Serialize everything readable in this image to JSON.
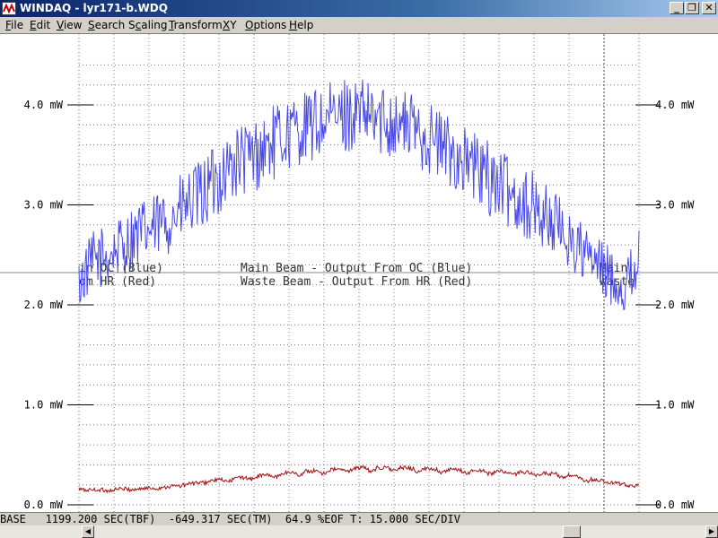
{
  "window": {
    "title": "WINDAQ - lyr171-b.WDQ",
    "buttons": {
      "minimize": "_",
      "maximize": "❐",
      "close": "✕"
    }
  },
  "menu": {
    "items": [
      {
        "label": "File",
        "underline": "F",
        "rest": "ile"
      },
      {
        "label": "Edit",
        "underline": "E",
        "rest": "dit"
      },
      {
        "label": "View",
        "underline": "V",
        "rest": "iew"
      },
      {
        "label": "Search",
        "underline": "S",
        "rest": "earch"
      },
      {
        "label": "Scaling",
        "underline": "c",
        "pre": "S",
        "rest": "aling"
      },
      {
        "label": "Transform",
        "underline": "T",
        "rest": "ransform"
      },
      {
        "label": "XY",
        "underline": "X",
        "rest": "Y"
      },
      {
        "label": "Options",
        "underline": "O",
        "rest": "ptions"
      },
      {
        "label": "Help",
        "underline": "H",
        "rest": "elp"
      }
    ]
  },
  "chart_data": {
    "type": "line",
    "y_unit": "mW",
    "ylim": [
      0,
      4.6
    ],
    "y_ticks": [
      {
        "value": 0.0,
        "label": "0.0 mW"
      },
      {
        "value": 1.0,
        "label": "1.0 mW"
      },
      {
        "value": 2.0,
        "label": "2.0 mW"
      },
      {
        "value": 3.0,
        "label": "3.0 mW"
      },
      {
        "value": 4.0,
        "label": "4.0 mW"
      }
    ],
    "grid": true,
    "x_divisions": 16,
    "sec_per_div": 15.0,
    "series": [
      {
        "name": "Main Beam - Output From OC (Blue)",
        "color": "#4a4ae8",
        "values": [
          2.2,
          2.45,
          2.5,
          2.6,
          2.7,
          2.75,
          2.85,
          2.95,
          3.05,
          3.2,
          3.35,
          3.45,
          3.5,
          3.6,
          3.7,
          3.75,
          3.8,
          3.85,
          3.9,
          3.9,
          3.85,
          3.85,
          3.8,
          3.75,
          3.65,
          3.55,
          3.45,
          3.35,
          3.25,
          3.15,
          3.05,
          2.95,
          2.85,
          2.7,
          2.55,
          2.4,
          2.3,
          2.15,
          2.5
        ]
      },
      {
        "name": "Waste Beam - Output From HR (Red)",
        "color": "#a01010",
        "values": [
          0.16,
          0.15,
          0.15,
          0.16,
          0.16,
          0.17,
          0.18,
          0.2,
          0.22,
          0.24,
          0.26,
          0.27,
          0.29,
          0.3,
          0.32,
          0.33,
          0.34,
          0.35,
          0.36,
          0.37,
          0.37,
          0.37,
          0.37,
          0.36,
          0.36,
          0.35,
          0.35,
          0.34,
          0.34,
          0.33,
          0.33,
          0.32,
          0.31,
          0.3,
          0.27,
          0.25,
          0.23,
          0.2,
          0.2
        ]
      }
    ]
  },
  "annotations": {
    "main_line_full": "Main Beam - Output From OC (Blue)",
    "waste_line_full": "Waste Beam - Output From HR (Red)",
    "main_line_left_fragment": "in OC (Blue)",
    "waste_line_left_fragment": "om HR (Red)",
    "main_line_right_fragment": "Main",
    "waste_line_right_fragment": "Waste"
  },
  "status": {
    "text": "BASE   1199.200 SEC(TBF)  -649.317 SEC(TM)  64.9 %EOF T: 15.000 SEC/DIV"
  },
  "scrollbar": {
    "left_arrow": "◀",
    "right_arrow": "▶",
    "position_fraction": 0.79
  }
}
